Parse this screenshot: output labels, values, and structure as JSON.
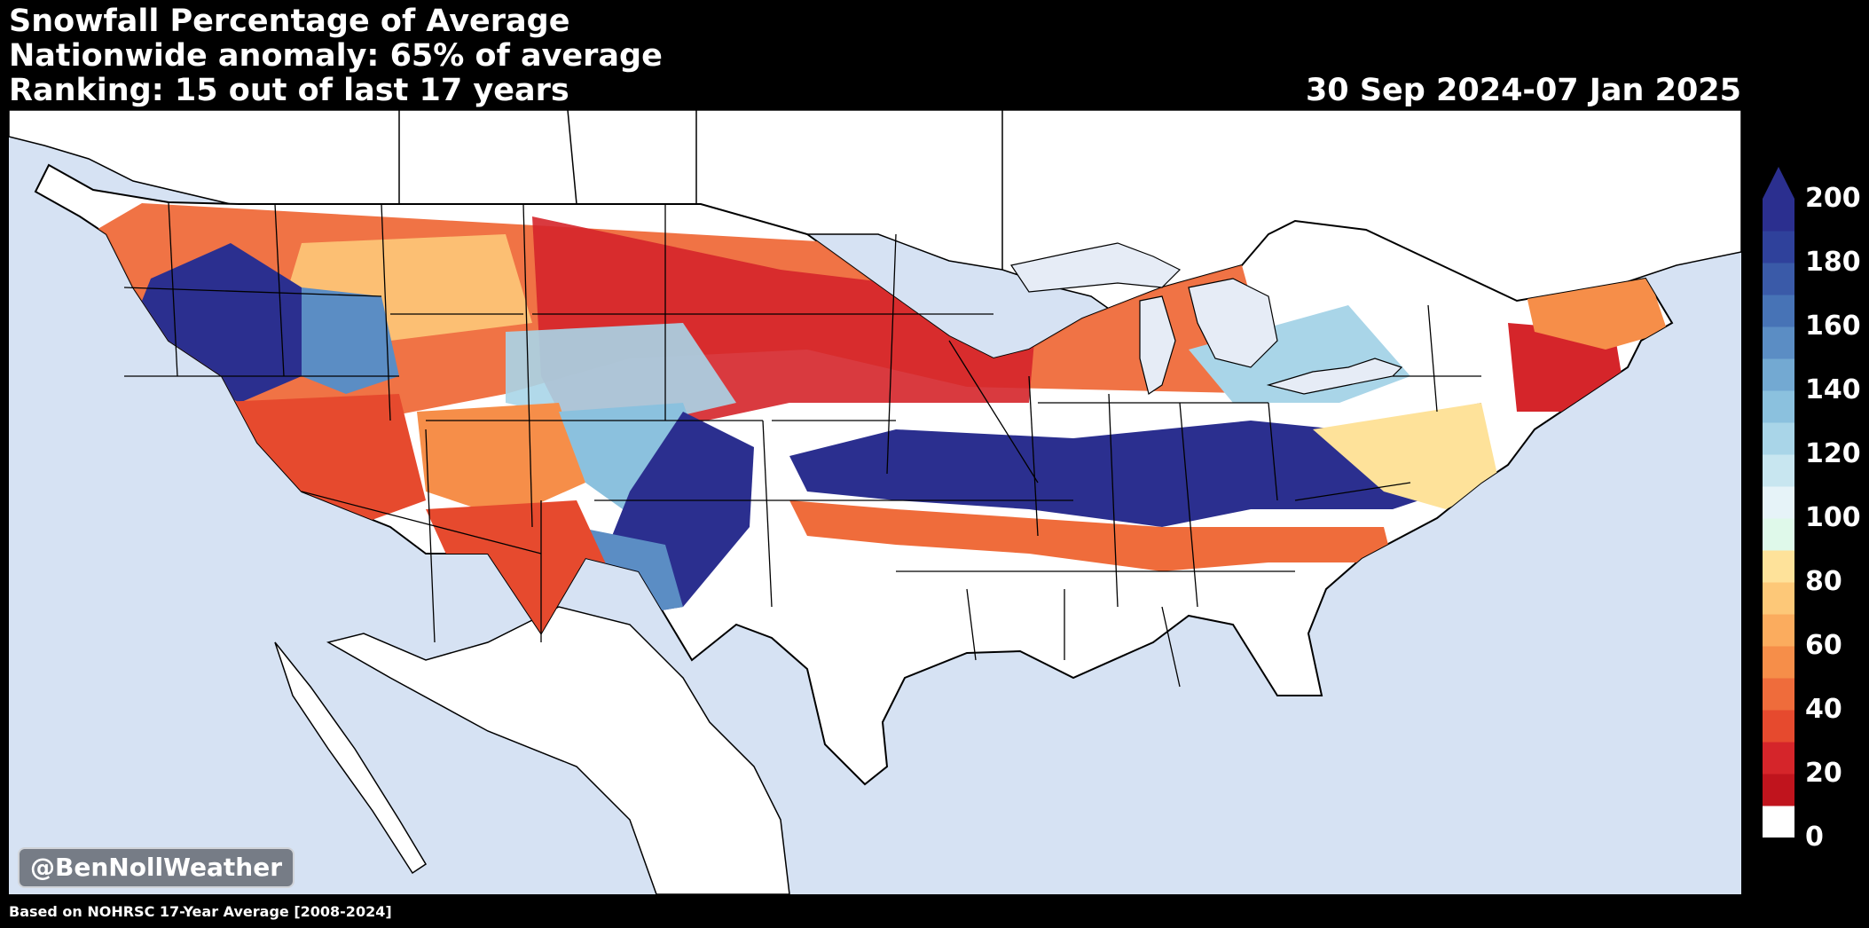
{
  "title": {
    "line1": "Snowfall Percentage of Average",
    "line2": "Nationwide anomaly: 65% of average",
    "line3": "Ranking: 15 out of last 17 years"
  },
  "date_range": "30 Sep 2024-07 Jan 2025",
  "watermark": "@BenNollWeather",
  "footnote": "Based on NOHRSC 17-Year Average [2008-2024]",
  "colors": {
    "background": "#000000",
    "ocean": "#d6e2f3",
    "land": "#ffffff",
    "great_lakes": "#e6ecf6"
  },
  "legend": {
    "min": 0,
    "max": 200,
    "extend": "max",
    "ticks": [
      "0",
      "20",
      "40",
      "60",
      "80",
      "100",
      "120",
      "140",
      "160",
      "180",
      "200"
    ],
    "colors": [
      "#ffffff",
      "#c0141d",
      "#d5252a",
      "#e64a2e",
      "#ef6c3b",
      "#f68e49",
      "#fbac5e",
      "#fdc878",
      "#fee29a",
      "#dff9ea",
      "#e6f3f8",
      "#c8e6f0",
      "#a9d5e8",
      "#8bc1de",
      "#73a9d2",
      "#5b8dc4",
      "#4773b6",
      "#3a5aa8",
      "#2f419b",
      "#2b2f8f"
    ]
  }
}
